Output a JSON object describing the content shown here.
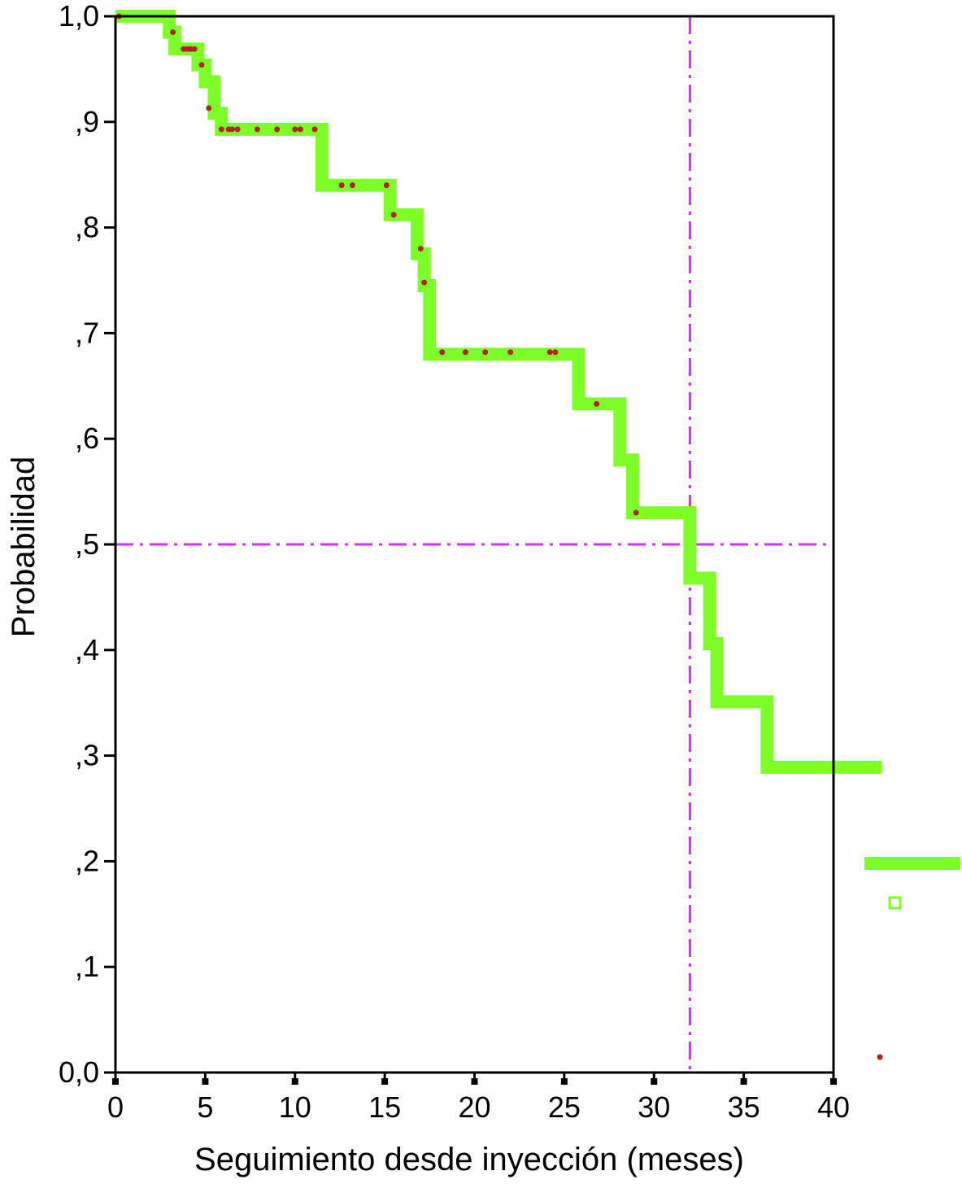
{
  "chart_data": {
    "type": "line",
    "step": true,
    "title": "",
    "xlabel": "Seguimiento desde inyección (meses)",
    "ylabel": "Probabilidad",
    "xlim": [
      0,
      40
    ],
    "ylim": [
      0,
      1
    ],
    "x_ticks": [
      0,
      5,
      10,
      15,
      20,
      25,
      30,
      35,
      40
    ],
    "x_tick_labels": [
      "0",
      "5",
      "10",
      "15",
      "20",
      "25",
      "30",
      "35",
      "40"
    ],
    "y_ticks": [
      0,
      0.1,
      0.2,
      0.3,
      0.4,
      0.5,
      0.6,
      0.7,
      0.8,
      0.9,
      1.0
    ],
    "y_tick_labels": [
      "0,0",
      ",1",
      ",2",
      ",3",
      ",4",
      ",5",
      ",6",
      ",7",
      ",8",
      ",9",
      "1,0"
    ],
    "grid": false,
    "legend": "right",
    "series": [
      {
        "kind": "survival_step",
        "color": "#7fff2a",
        "points": [
          [
            0,
            1.0
          ],
          [
            3.0,
            1.0
          ],
          [
            3.0,
            0.985
          ],
          [
            3.3,
            0.985
          ],
          [
            3.3,
            0.969
          ],
          [
            4.6,
            0.969
          ],
          [
            4.6,
            0.954
          ],
          [
            5.0,
            0.954
          ],
          [
            5.0,
            0.938
          ],
          [
            5.5,
            0.938
          ],
          [
            5.5,
            0.908
          ],
          [
            5.9,
            0.908
          ],
          [
            5.9,
            0.893
          ],
          [
            11.5,
            0.893
          ],
          [
            11.5,
            0.84
          ],
          [
            15.3,
            0.84
          ],
          [
            15.3,
            0.812
          ],
          [
            16.8,
            0.812
          ],
          [
            16.8,
            0.775
          ],
          [
            17.2,
            0.775
          ],
          [
            17.2,
            0.745
          ],
          [
            17.5,
            0.745
          ],
          [
            17.5,
            0.68
          ],
          [
            25.8,
            0.68
          ],
          [
            25.8,
            0.633
          ],
          [
            28.1,
            0.633
          ],
          [
            28.1,
            0.58
          ],
          [
            28.8,
            0.58
          ],
          [
            28.8,
            0.53
          ],
          [
            32.0,
            0.53
          ],
          [
            32.0,
            0.468
          ],
          [
            33.1,
            0.468
          ],
          [
            33.1,
            0.406
          ],
          [
            33.5,
            0.406
          ],
          [
            33.5,
            0.351
          ],
          [
            36.3,
            0.351
          ],
          [
            36.3,
            0.289
          ],
          [
            42.7,
            0.289
          ]
        ]
      },
      {
        "kind": "censored_marks",
        "color": "#b22222",
        "points": [
          [
            0.2,
            1.0
          ],
          [
            3.2,
            0.985
          ],
          [
            3.8,
            0.969
          ],
          [
            4.0,
            0.969
          ],
          [
            4.2,
            0.969
          ],
          [
            4.4,
            0.969
          ],
          [
            4.8,
            0.954
          ],
          [
            5.2,
            0.913
          ],
          [
            5.9,
            0.893
          ],
          [
            6.3,
            0.893
          ],
          [
            6.5,
            0.893
          ],
          [
            6.8,
            0.893
          ],
          [
            7.9,
            0.893
          ],
          [
            9.0,
            0.893
          ],
          [
            10.0,
            0.893
          ],
          [
            10.3,
            0.893
          ],
          [
            11.1,
            0.893
          ],
          [
            12.6,
            0.84
          ],
          [
            13.2,
            0.84
          ],
          [
            15.1,
            0.84
          ],
          [
            15.5,
            0.812
          ],
          [
            17.0,
            0.78
          ],
          [
            17.2,
            0.748
          ],
          [
            18.2,
            0.682
          ],
          [
            19.5,
            0.682
          ],
          [
            20.6,
            0.682
          ],
          [
            22.0,
            0.682
          ],
          [
            24.2,
            0.682
          ],
          [
            24.5,
            0.682
          ],
          [
            26.8,
            0.633
          ],
          [
            29.0,
            0.53
          ]
        ]
      }
    ],
    "reference_lines": [
      {
        "orientation": "horizontal",
        "value": 0.5,
        "color": "#cc33ff",
        "style": "dash-dot"
      },
      {
        "orientation": "vertical",
        "value": 32.0,
        "color": "#cc33ff",
        "style": "dash-dot"
      }
    ],
    "legend_entries": [
      {
        "symbol": "line",
        "color": "#7fff2a",
        "label": ""
      },
      {
        "symbol": "hollow-square",
        "color": "#7fff2a",
        "label": ""
      },
      {
        "symbol": "dot",
        "color": "#b22222",
        "label": ""
      }
    ]
  }
}
